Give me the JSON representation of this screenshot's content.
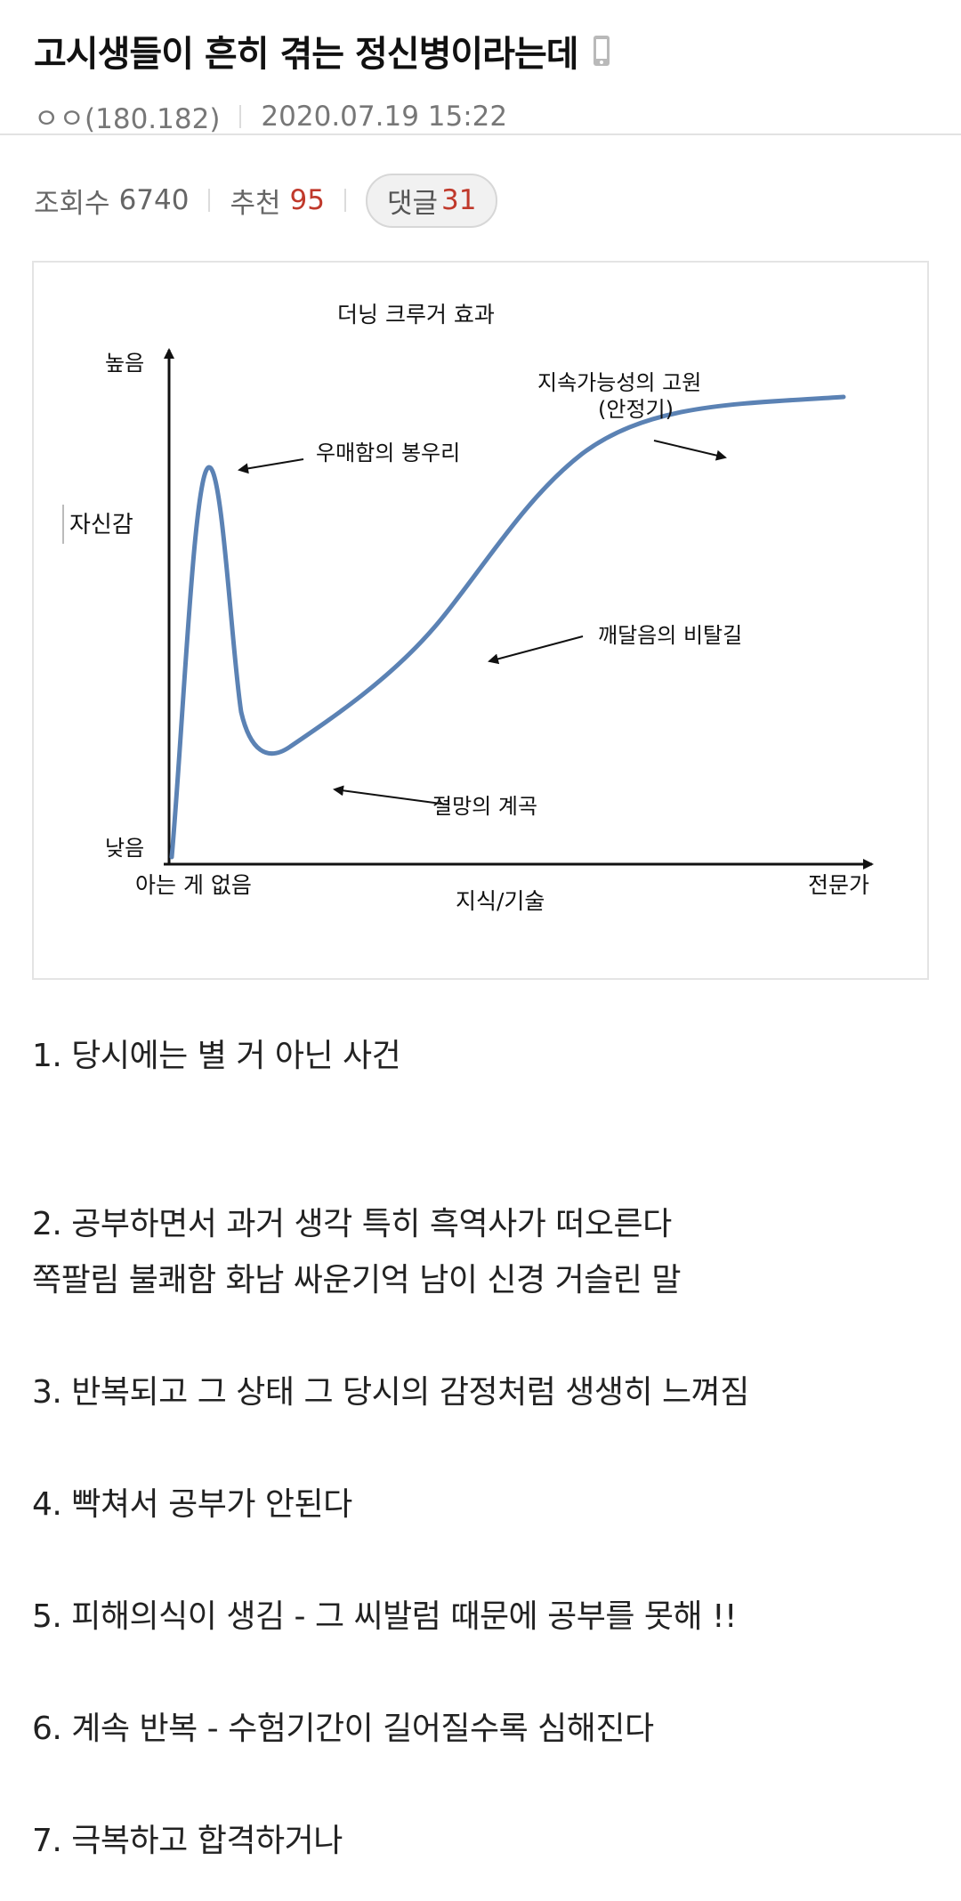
{
  "post": {
    "title": "고시생들이 흔히 겪는 정신병이라는데",
    "author": "ㅇㅇ(180.182)",
    "date": "2020.07.19 15:22",
    "views_label": "조회수",
    "views": "6740",
    "recommend_label": "추천",
    "recommend": "95",
    "comments_label": "댓글",
    "comments": "31"
  },
  "figure": {
    "title": "더닝 크루거 효과",
    "y_label": "자신감",
    "y_high": "높음",
    "y_low": "낮음",
    "x_label": "지식/기술",
    "x_start": "아는 게 없음",
    "x_end": "전문가",
    "annotations": {
      "peak": "우매함의 봉우리",
      "valley": "절망의 계곡",
      "slope": "깨달음의 비탈길",
      "plateau_1": "지속가능성의 고원",
      "plateau_2": "(안정기)"
    },
    "curve_color": "#5b82b4"
  },
  "body_lines": [
    "1. 당시에는 별 거 아닌 사건",
    "",
    "",
    "2. 공부하면서 과거 생각 특히 흑역사가 떠오른다",
    "쪽팔림 불쾌함 화남 싸운기억 남이 신경 거슬린 말",
    "",
    "3. 반복되고 그 상태 그 당시의 감정처럼 생생히 느껴짐",
    "",
    "4. 빡쳐서 공부가 안된다",
    "",
    "5. 피해의식이 생김 - 그 씨발럼 때문에 공부를 못해 !!",
    "",
    "6. 계속 반복 - 수험기간이 길어질수록 심해진다",
    "",
    "7. 극복하고 합격하거나"
  ]
}
